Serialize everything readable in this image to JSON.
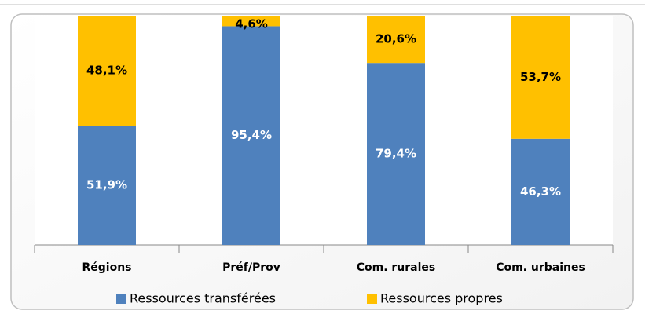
{
  "chart_data": {
    "type": "stacked-bar",
    "categories": [
      "Régions",
      "Préf/Prov",
      "Com. rurales",
      "Com. urbaines"
    ],
    "series": [
      {
        "name": "Ressources transférées",
        "color": "#4f81bd",
        "values": [
          51.9,
          95.4,
          79.4,
          46.3
        ],
        "value_labels": [
          "51,9%",
          "95,4%",
          "79,4%",
          "46,3%"
        ]
      },
      {
        "name": "Ressources propres",
        "color": "#ffc000",
        "values": [
          48.1,
          4.6,
          20.6,
          53.7
        ],
        "value_labels": [
          "48,1%",
          "4,6%",
          "20,6%",
          "53,7%"
        ]
      }
    ],
    "ylim": [
      0,
      100
    ],
    "legend": "bottom"
  }
}
